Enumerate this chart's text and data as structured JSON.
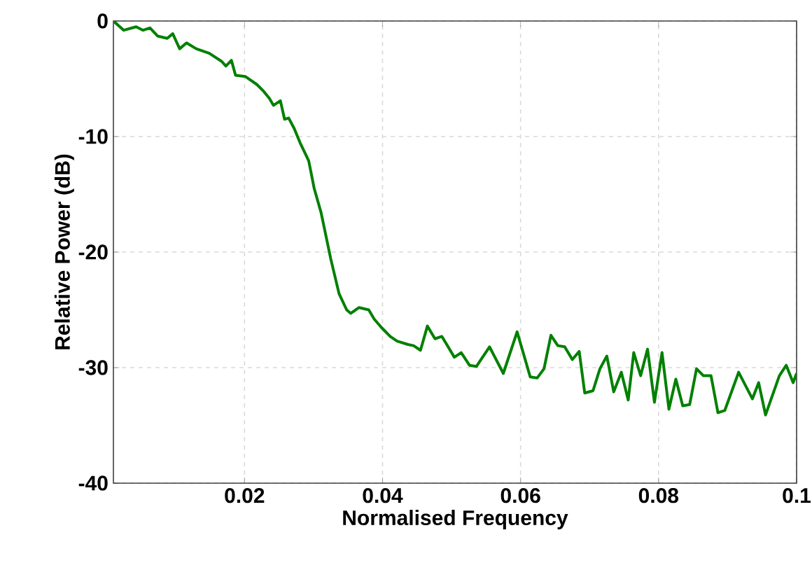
{
  "chart_data": {
    "type": "line",
    "xlabel": "Normalised Frequency",
    "ylabel": "Relative Power (dB)",
    "xlim": [
      0.001,
      0.1
    ],
    "ylim": [
      -40,
      0
    ],
    "xticks": [
      0.02,
      0.04,
      0.06,
      0.08,
      0.1
    ],
    "yticks": [
      -40,
      -30,
      -20,
      -10,
      0
    ],
    "grid": true,
    "line_style": "solid",
    "marker": "none",
    "series": [
      {
        "color": "#008000",
        "x": [
          0.001,
          0.0025,
          0.0043,
          0.0053,
          0.0063,
          0.0074,
          0.0088,
          0.0096,
          0.0106,
          0.0116,
          0.013,
          0.0149,
          0.0167,
          0.0173,
          0.0181,
          0.0187,
          0.0201,
          0.0218,
          0.0228,
          0.0236,
          0.0242,
          0.0252,
          0.0258,
          0.0264,
          0.0272,
          0.0281,
          0.0293,
          0.0301,
          0.0311,
          0.0325,
          0.0337,
          0.0348,
          0.0354,
          0.0366,
          0.038,
          0.0388,
          0.0398,
          0.0411,
          0.0421,
          0.0437,
          0.0445,
          0.0455,
          0.0465,
          0.0476,
          0.0486,
          0.0492,
          0.0504,
          0.0514,
          0.0526,
          0.0536,
          0.0555,
          0.0575,
          0.0595,
          0.0614,
          0.0624,
          0.0634,
          0.0644,
          0.0654,
          0.0664,
          0.0675,
          0.0685,
          0.0693,
          0.0705,
          0.0715,
          0.0725,
          0.0735,
          0.0746,
          0.0756,
          0.0764,
          0.0774,
          0.0784,
          0.0794,
          0.0805,
          0.0815,
          0.0825,
          0.0835,
          0.0845,
          0.0855,
          0.0865,
          0.0876,
          0.0886,
          0.0896,
          0.0916,
          0.0936,
          0.0945,
          0.0955,
          0.0975,
          0.0985,
          0.0995,
          0.1
        ],
        "values": [
          0,
          -0.8,
          -0.5,
          -0.8,
          -0.6,
          -1.3,
          -1.5,
          -1.1,
          -2.4,
          -1.9,
          -2.4,
          -2.8,
          -3.5,
          -3.9,
          -3.4,
          -4.7,
          -4.8,
          -5.5,
          -6.1,
          -6.7,
          -7.3,
          -6.9,
          -8.5,
          -8.4,
          -9.3,
          -10.6,
          -12.1,
          -14.5,
          -16.6,
          -20.6,
          -23.6,
          -25,
          -25.3,
          -24.8,
          -25,
          -25.8,
          -26.5,
          -27.3,
          -27.7,
          -28,
          -28.1,
          -28.5,
          -26.4,
          -27.5,
          -27.3,
          -27.9,
          -29.1,
          -28.7,
          -29.8,
          -29.9,
          -28.2,
          -30.5,
          -26.9,
          -30.8,
          -30.9,
          -30.1,
          -27.2,
          -28.1,
          -28.2,
          -29.3,
          -28.6,
          -32.2,
          -32,
          -30.1,
          -29,
          -32.1,
          -30.4,
          -32.8,
          -28.7,
          -30.7,
          -28.4,
          -33,
          -28.7,
          -33.6,
          -31,
          -33.3,
          -33.2,
          -30.1,
          -30.7,
          -30.7,
          -33.9,
          -33.7,
          -30.4,
          -32.7,
          -31.3,
          -34.1,
          -30.7,
          -29.8,
          -31.3,
          -30.5
        ]
      }
    ]
  }
}
